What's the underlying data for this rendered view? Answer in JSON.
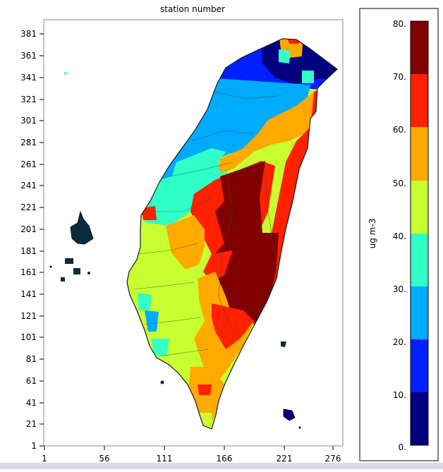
{
  "title": "station number",
  "map": {
    "y_ticks": [
      "381",
      "361",
      "341",
      "321",
      "301",
      "281",
      "261",
      "241",
      "221",
      "201",
      "181",
      "161",
      "141",
      "121",
      "101",
      "81",
      "61",
      "41",
      "21",
      "1"
    ],
    "x_ticks": [
      "1",
      "56",
      "111",
      "166",
      "221",
      "276"
    ]
  },
  "colorbar": {
    "label": "ug m-3",
    "tick_labels": [
      "80.",
      "70.",
      "60.",
      "50.",
      "40.",
      "30.",
      "20.",
      "10.",
      "0."
    ],
    "bands": [
      {
        "from": 70,
        "to": 80,
        "color": "#800000"
      },
      {
        "from": 60,
        "to": 70,
        "color": "#ff2000"
      },
      {
        "from": 50,
        "to": 60,
        "color": "#ffaa00"
      },
      {
        "from": 40,
        "to": 50,
        "color": "#c8ff30"
      },
      {
        "from": 30,
        "to": 40,
        "color": "#30ffc8"
      },
      {
        "from": 20,
        "to": 30,
        "color": "#00aaff"
      },
      {
        "from": 10,
        "to": 20,
        "color": "#0020ff"
      },
      {
        "from": 0,
        "to": 10,
        "color": "#000080"
      }
    ]
  }
}
